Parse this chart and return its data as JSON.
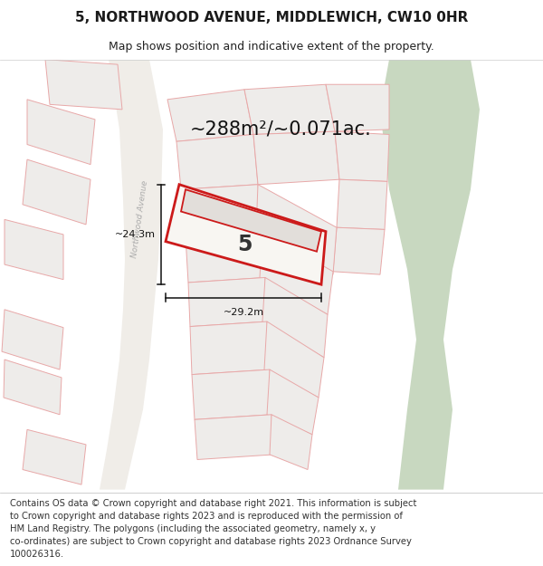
{
  "title": "5, NORTHWOOD AVENUE, MIDDLEWICH, CW10 0HR",
  "subtitle": "Map shows position and indicative extent of the property.",
  "area_text": "~288m²/~0.071ac.",
  "property_number": "5",
  "dim_width": "~29.2m",
  "dim_height": "~24.3m",
  "street_label": "Northwood Avenue",
  "footer_lines": [
    "Contains OS data © Crown copyright and database right 2021. This information is subject",
    "to Crown copyright and database rights 2023 and is reproduced with the permission of",
    "HM Land Registry. The polygons (including the associated geometry, namely x, y",
    "co-ordinates) are subject to Crown copyright and database rights 2023 Ordnance Survey",
    "100026316."
  ],
  "map_bg": "#ffffff",
  "plot_fill": "#e8e6e2",
  "plot_edge_pink": "#e8a8a8",
  "plot_edge_gray": "#c8c4be",
  "highlight_red": "#cc1a1a",
  "green_fill": "#c8d8c0",
  "road_fill": "#f0ede8",
  "title_fs": 11,
  "subtitle_fs": 9,
  "area_fs": 15,
  "num_fs": 17,
  "footer_fs": 7.2,
  "street_fs": 6.5,
  "dim_fs": 8
}
